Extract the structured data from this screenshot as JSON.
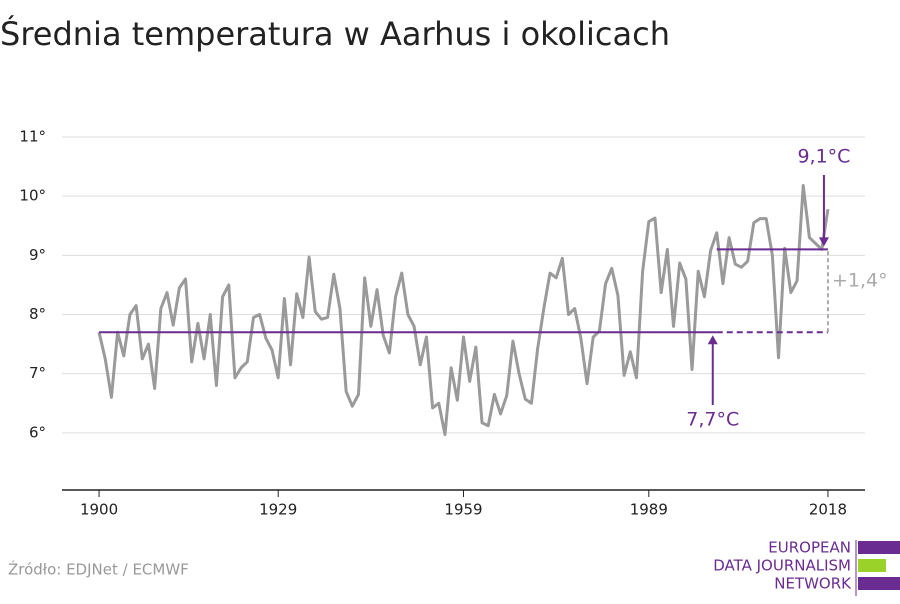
{
  "chart_data": {
    "type": "line",
    "title": "Średnia temperatura w Aarhus i okolicach",
    "source": "Źródło: EDJNet / ECMWF",
    "logo": [
      "EUROPEAN",
      "DATA JOURNALISM",
      "NETWORK"
    ],
    "x": [
      1900,
      1901,
      1902,
      1903,
      1904,
      1905,
      1906,
      1907,
      1908,
      1909,
      1910,
      1911,
      1912,
      1913,
      1914,
      1915,
      1916,
      1917,
      1918,
      1919,
      1920,
      1921,
      1922,
      1923,
      1924,
      1925,
      1926,
      1927,
      1928,
      1929,
      1930,
      1931,
      1932,
      1933,
      1934,
      1935,
      1936,
      1937,
      1938,
      1939,
      1940,
      1941,
      1942,
      1943,
      1944,
      1945,
      1946,
      1947,
      1948,
      1949,
      1950,
      1951,
      1952,
      1953,
      1954,
      1955,
      1956,
      1957,
      1958,
      1959,
      1960,
      1961,
      1962,
      1963,
      1964,
      1965,
      1966,
      1967,
      1968,
      1969,
      1970,
      1971,
      1972,
      1973,
      1974,
      1975,
      1976,
      1977,
      1978,
      1979,
      1980,
      1981,
      1982,
      1983,
      1984,
      1985,
      1986,
      1987,
      1988,
      1989,
      1990,
      1991,
      1992,
      1993,
      1994,
      1995,
      1996,
      1997,
      1998,
      1999,
      2000,
      2001,
      2002,
      2003,
      2004,
      2005,
      2006,
      2007,
      2008,
      2009,
      2010,
      2011,
      2012,
      2013,
      2014,
      2015,
      2016,
      2017,
      2018
    ],
    "series": [
      {
        "color": "#9a9a9a",
        "values": [
          7.7,
          7.25,
          6.6,
          7.7,
          7.3,
          8.0,
          8.15,
          7.25,
          7.5,
          6.75,
          8.1,
          8.37,
          7.82,
          8.45,
          8.6,
          7.2,
          7.85,
          7.25,
          8.0,
          6.8,
          8.3,
          8.5,
          6.93,
          7.1,
          7.2,
          7.95,
          8.0,
          7.6,
          7.4,
          6.93,
          8.27,
          7.15,
          8.35,
          7.95,
          8.97,
          8.05,
          7.92,
          7.95,
          8.68,
          8.1,
          6.7,
          6.45,
          6.65,
          8.62,
          7.8,
          8.42,
          7.65,
          7.35,
          8.3,
          8.7,
          8.0,
          7.8,
          7.15,
          7.62,
          6.42,
          6.5,
          5.97,
          7.1,
          6.55,
          7.62,
          6.87,
          7.45,
          6.17,
          6.12,
          6.65,
          6.32,
          6.63,
          7.55,
          7.0,
          6.57,
          6.5,
          7.42,
          8.1,
          8.7,
          8.62,
          8.95,
          8.0,
          8.1,
          7.6,
          6.83,
          7.62,
          7.72,
          8.52,
          8.78,
          8.32,
          6.97,
          7.37,
          6.93,
          8.73,
          9.57,
          9.63,
          8.37,
          9.1,
          7.8,
          8.87,
          8.6,
          7.07,
          8.73,
          8.3,
          9.08,
          9.38,
          8.52,
          9.3,
          8.85,
          8.8,
          8.9,
          9.55,
          9.62,
          9.62,
          9.0,
          7.27,
          9.12,
          8.37,
          8.57,
          10.18,
          9.3,
          9.2,
          9.1,
          9.78
        ]
      }
    ],
    "reference_lines": [
      {
        "value": 7.7,
        "label": "7,7°C",
        "solid_x": [
          1900,
          2000
        ],
        "dashed_x": [
          2000,
          2018
        ],
        "color": "#6a2c91"
      },
      {
        "value": 9.1,
        "label": "9,1°C",
        "solid_x": [
          2000,
          2018
        ],
        "color": "#6a2c91"
      }
    ],
    "difference_label": "+1,4°",
    "xlim": [
      1894,
      2024
    ],
    "xticks": [
      1900,
      1929,
      1959,
      1989,
      2018
    ],
    "ylim": [
      5,
      11
    ],
    "yticks": [
      {
        "value": 6,
        "label": "6°"
      },
      {
        "value": 7,
        "label": "7°"
      },
      {
        "value": 8,
        "label": "8°"
      },
      {
        "value": 9,
        "label": "9°"
      },
      {
        "value": 10,
        "label": "10°"
      },
      {
        "value": 11,
        "label": "11°"
      }
    ],
    "grid": true
  }
}
